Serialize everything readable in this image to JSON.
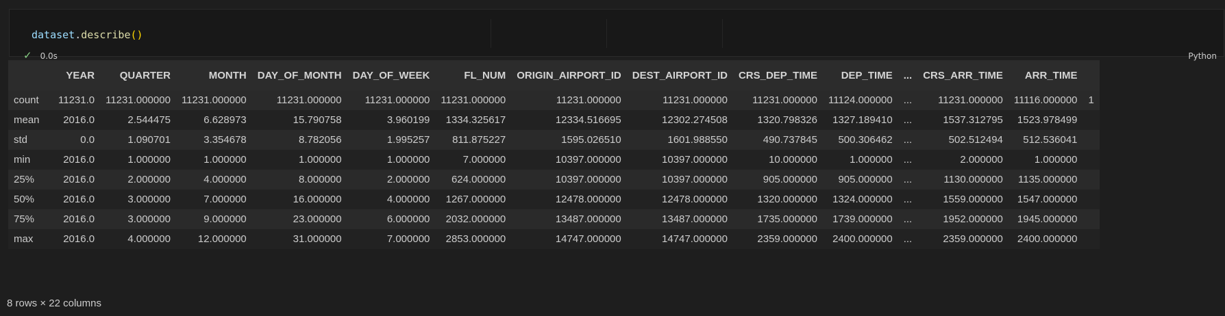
{
  "cell": {
    "code": {
      "object": "dataset",
      "dot": ".",
      "method": "describe",
      "parens": "()"
    },
    "exec_time": "0.0s",
    "language": "Python",
    "status_icon": "check-icon"
  },
  "table": {
    "columns": [
      "YEAR",
      "QUARTER",
      "MONTH",
      "DAY_OF_MONTH",
      "DAY_OF_WEEK",
      "FL_NUM",
      "ORIGIN_AIRPORT_ID",
      "DEST_AIRPORT_ID",
      "CRS_DEP_TIME",
      "DEP_TIME",
      "...",
      "CRS_ARR_TIME",
      "ARR_TIME",
      ""
    ],
    "rows": [
      {
        "index": "count",
        "values": [
          "11231.0",
          "11231.000000",
          "11231.000000",
          "11231.000000",
          "11231.000000",
          "11231.000000",
          "11231.000000",
          "11231.000000",
          "11231.000000",
          "11124.000000",
          "...",
          "11231.000000",
          "11116.000000",
          "1"
        ]
      },
      {
        "index": "mean",
        "values": [
          "2016.0",
          "2.544475",
          "6.628973",
          "15.790758",
          "3.960199",
          "1334.325617",
          "12334.516695",
          "12302.274508",
          "1320.798326",
          "1327.189410",
          "...",
          "1537.312795",
          "1523.978499",
          ""
        ]
      },
      {
        "index": "std",
        "values": [
          "0.0",
          "1.090701",
          "3.354678",
          "8.782056",
          "1.995257",
          "811.875227",
          "1595.026510",
          "1601.988550",
          "490.737845",
          "500.306462",
          "...",
          "502.512494",
          "512.536041",
          ""
        ]
      },
      {
        "index": "min",
        "values": [
          "2016.0",
          "1.000000",
          "1.000000",
          "1.000000",
          "1.000000",
          "7.000000",
          "10397.000000",
          "10397.000000",
          "10.000000",
          "1.000000",
          "...",
          "2.000000",
          "1.000000",
          ""
        ]
      },
      {
        "index": "25%",
        "values": [
          "2016.0",
          "2.000000",
          "4.000000",
          "8.000000",
          "2.000000",
          "624.000000",
          "10397.000000",
          "10397.000000",
          "905.000000",
          "905.000000",
          "...",
          "1130.000000",
          "1135.000000",
          ""
        ]
      },
      {
        "index": "50%",
        "values": [
          "2016.0",
          "3.000000",
          "7.000000",
          "16.000000",
          "4.000000",
          "1267.000000",
          "12478.000000",
          "12478.000000",
          "1320.000000",
          "1324.000000",
          "...",
          "1559.000000",
          "1547.000000",
          ""
        ]
      },
      {
        "index": "75%",
        "values": [
          "2016.0",
          "3.000000",
          "9.000000",
          "23.000000",
          "6.000000",
          "2032.000000",
          "13487.000000",
          "13487.000000",
          "1735.000000",
          "1739.000000",
          "...",
          "1952.000000",
          "1945.000000",
          ""
        ]
      },
      {
        "index": "max",
        "values": [
          "2016.0",
          "4.000000",
          "12.000000",
          "31.000000",
          "7.000000",
          "2853.000000",
          "14747.000000",
          "14747.000000",
          "2359.000000",
          "2400.000000",
          "...",
          "2359.000000",
          "2400.000000",
          ""
        ]
      }
    ]
  },
  "footer": {
    "summary": "8 rows × 22 columns"
  }
}
